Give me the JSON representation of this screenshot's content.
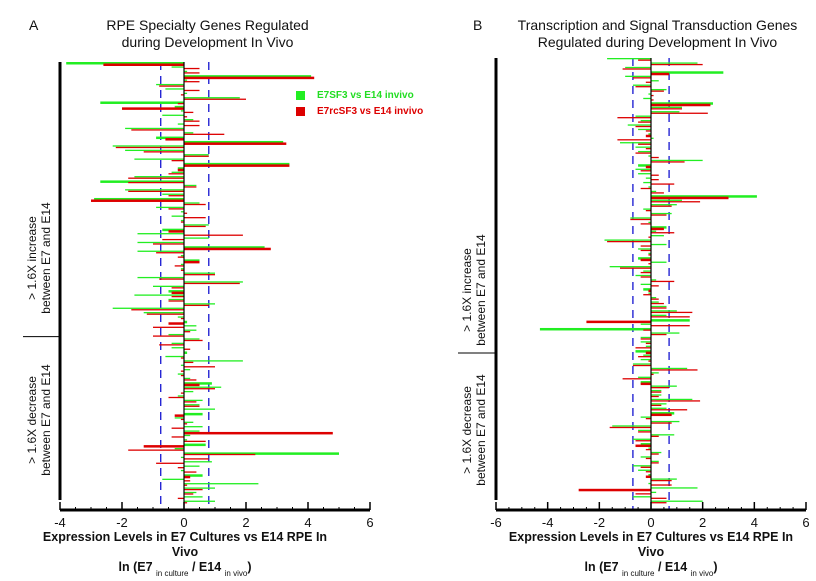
{
  "panels": [
    {
      "letter": "A",
      "title_line1": "RPE Specialty Genes Regulated",
      "title_line2": "during Development In Vivo",
      "xlabel_line1": "Expression Levels in E7 Cultures vs E14 RPE In Vivo",
      "xlabel_line2_prefix": "ln (E7",
      "xlabel_sub1": "in culture",
      "xlabel_mid": "/ E14",
      "xlabel_sub2": "in vivo",
      "xlabel_suffix": ")",
      "group_increase_line1": "> 1.6X increase",
      "group_increase_line2": "between E7 and E14",
      "group_decrease_line1": "> 1.6X decrease",
      "group_decrease_line2": "between E7 and E14"
    },
    {
      "letter": "B",
      "title_line1": "Transcription and Signal Transduction Genes",
      "title_line2": "Regulated during Development In Vivo",
      "xlabel_line1": "Expression Levels in E7 Cultures vs E14 RPE In Vivo",
      "xlabel_line2_prefix": "ln (E7",
      "xlabel_sub1": "in culture",
      "xlabel_mid": "/ E14",
      "xlabel_sub2": "in vivo",
      "xlabel_suffix": ")",
      "group_increase_line1": "> 1.6X increase",
      "group_increase_line2": "between E7 and E14",
      "group_decrease_line1": "> 1.6X decrease",
      "group_decrease_line2": "between E7 and E14"
    }
  ],
  "legend": {
    "items": [
      {
        "label": "E7SF3 vs E14 invivo",
        "color": "#22ee22"
      },
      {
        "label": "E7rcSF3 vs E14 invivo",
        "color": "#dd0000"
      }
    ]
  },
  "colors": {
    "green": "#22ee22",
    "red": "#dd0000",
    "threshold": "#0000cc",
    "axis": "#000000"
  },
  "chart_data": [
    {
      "type": "bar",
      "orientation": "horizontal",
      "title": "RPE Specialty Genes Regulated during Development In Vivo",
      "xlabel": "Expression Levels in E7 Cultures vs E14 RPE In Vivo ln (E7 in culture / E14 in vivo)",
      "xlim": [
        -4,
        6
      ],
      "xticks": [
        -4,
        -2,
        0,
        2,
        4,
        6
      ],
      "threshold_lines": [
        -0.75,
        0.8
      ],
      "group_split_fraction": 0.62,
      "legend_position": "top-right",
      "series": [
        {
          "name": "E7SF3 vs E14 invivo",
          "values": [
            -3.8,
            -0.4,
            0.1,
            4.1,
            0.1,
            -0.9,
            -0.6,
            0.1,
            1.8,
            -2.7,
            -0.3,
            -0.1,
            -0.7,
            0.3,
            -0.2,
            -1.9,
            0.3,
            -0.9,
            3.2,
            -2.3,
            -1.9,
            0.8,
            -1.6,
            3.4,
            -0.2,
            -0.4,
            -1.6,
            -2.7,
            0.4,
            -1.9,
            -0.7,
            -2.9,
            0.5,
            -0.9,
            -0.1,
            -0.4,
            -0.1,
            0.8,
            -0.7,
            -1.5,
            0.8,
            -1.5,
            2.6,
            -1.5,
            -0.1,
            0.5,
            -0.1,
            -0.1,
            1.0,
            -1.5,
            1.9,
            -1.0,
            -0.5,
            -1.6,
            -0.5,
            1.0,
            -2.3,
            -1.3,
            -0.2,
            0.1,
            0.4,
            0.4,
            -0.5,
            0.5,
            -0.4,
            -0.4,
            0.1,
            -0.6,
            1.9,
            -0.1,
            0.2,
            -0.2,
            0.2,
            0.9,
            1.2,
            0.3,
            -0.2,
            0.6,
            0.5,
            1.0,
            0.6,
            -0.3,
            0.3,
            0.6,
            0.5,
            0.2,
            0.1,
            0.7,
            -0.3,
            5.0,
            -0.1,
            0.9,
            0.5,
            -0.1,
            0.6,
            -0.7,
            2.4,
            1.0,
            0.4,
            0.6,
            1.0
          ],
          "color": "#22ee22"
        },
        {
          "name": "E7rcSF3 vs E14 invivo",
          "values": [
            -2.6,
            0.5,
            0.5,
            4.2,
            0.5,
            -0.8,
            0.5,
            -0.1,
            2.0,
            -0.2,
            -2.0,
            0.3,
            0.1,
            0.5,
            0.5,
            -1.7,
            1.3,
            -0.6,
            3.3,
            -2.2,
            -1.3,
            0.8,
            -0.4,
            3.4,
            -0.2,
            -0.5,
            -1.8,
            -1.8,
            0.4,
            -1.8,
            -0.5,
            -3.0,
            0.7,
            -0.5,
            0.1,
            0.7,
            -0.1,
            0.7,
            -0.5,
            1.9,
            -0.7,
            -1.0,
            2.8,
            -0.9,
            -0.2,
            0.5,
            -0.3,
            -0.1,
            1.0,
            -0.8,
            1.8,
            -0.4,
            -0.4,
            -0.4,
            -0.5,
            0.8,
            -1.7,
            -1.2,
            -0.1,
            -0.5,
            -1.0,
            0.2,
            -1.0,
            0.6,
            -0.8,
            0.2,
            0.0,
            -0.1,
            0.3,
            1.0,
            -0.1,
            -0.1,
            0.4,
            0.5,
            1.0,
            -0.1,
            -0.5,
            0.4,
            0.5,
            0.0,
            -0.3,
            -0.1,
            0.1,
            -0.4,
            4.8,
            -0.4,
            0.7,
            -1.3,
            -1.8,
            2.3,
            0.8,
            -0.9,
            -0.2,
            0.4,
            0.2,
            0.2,
            0.1,
            0.6,
            0.3,
            -0.2,
            0.1
          ],
          "color": "#dd0000"
        }
      ]
    },
    {
      "type": "bar",
      "orientation": "horizontal",
      "title": "Transcription and Signal Transduction Genes Regulated during Development In Vivo",
      "xlabel": "Expression Levels in E7 Cultures vs E14 RPE In Vivo ln (E7 in culture / E14 in vivo)",
      "xlim": [
        -6,
        6
      ],
      "xticks": [
        -6,
        -4,
        -2,
        0,
        2,
        4,
        6
      ],
      "threshold_lines": [
        -0.7,
        0.7
      ],
      "group_split_fraction": 0.66,
      "legend_position": "none",
      "series": [
        {
          "name": "E7SF3 vs E14 invivo",
          "values": [
            -1.7,
            1.8,
            -1.0,
            2.8,
            -1.0,
            0.3,
            -0.7,
            0.6,
            -0.1,
            -0.3,
            2.4,
            1.2,
            1.1,
            -0.6,
            -0.4,
            -0.9,
            -0.5,
            -0.1,
            0.1,
            -1.2,
            -0.6,
            -0.5,
            -0.1,
            2.0,
            -0.5,
            -0.6,
            -0.5,
            -0.2,
            -0.3,
            -0.1,
            0.2,
            4.1,
            1.2,
            1.0,
            -0.3,
            0.8,
            -0.8,
            -0.1,
            0.6,
            0.2,
            0.5,
            -1.8,
            0.6,
            -0.5,
            -0.1,
            -0.5,
            0.6,
            -1.6,
            -0.3,
            -0.6,
            0.2,
            -0.4,
            -0.3,
            -0.1,
            0.2,
            0.3,
            0.6,
            1.0,
            0.6,
            1.5,
            -0.4,
            -4.3,
            1.1,
            -0.4,
            -0.4,
            -0.2,
            -0.6,
            -0.3,
            -0.4,
            -0.7,
            1.4,
            0.3,
            -0.5,
            -0.4,
            1.0,
            0.4,
            0.4,
            1.6,
            0.6,
            0.6,
            0.9,
            -0.4,
            1.1,
            -1.5,
            -0.5,
            0.9,
            -0.7,
            -0.4,
            -0.1,
            0.4,
            -0.4,
            0.3,
            -0.7,
            -0.5,
            -0.1,
            1.0,
            -0.1,
            1.8,
            0.2,
            -0.7,
            2.0
          ],
          "color": "#22ee22"
        },
        {
          "name": "E7rcSF3 vs E14 invivo",
          "values": [
            -0.5,
            2.0,
            -1.1,
            0.7,
            -0.7,
            -0.2,
            -0.6,
            0.5,
            0.1,
            0.1,
            2.3,
            1.2,
            2.2,
            -1.3,
            -0.5,
            -0.6,
            -0.2,
            -0.2,
            -1.3,
            -0.5,
            -0.2,
            -0.6,
            0.3,
            1.3,
            -0.2,
            -0.4,
            0.3,
            0.3,
            0.9,
            -0.4,
            0.5,
            3.0,
            1.9,
            0.8,
            -0.2,
            0.6,
            -0.8,
            -0.4,
            0.5,
            0.9,
            -0.1,
            -1.7,
            -0.4,
            -0.4,
            -0.1,
            -0.4,
            -0.1,
            -1.2,
            -0.4,
            -0.4,
            0.9,
            0.3,
            -0.1,
            -0.3,
            0.3,
            0.5,
            0.6,
            1.6,
            1.5,
            -2.5,
            1.5,
            -0.3,
            0.6,
            -0.4,
            -0.2,
            -0.6,
            -0.2,
            -0.5,
            -0.1,
            -0.7,
            1.8,
            0.1,
            -1.1,
            -0.4,
            0.7,
            0.4,
            0.3,
            1.9,
            0.4,
            1.4,
            0.8,
            -0.2,
            0.8,
            -1.6,
            -0.5,
            0.3,
            -0.6,
            -0.6,
            -0.2,
            0.3,
            -0.2,
            0.3,
            -0.4,
            -0.2,
            -0.2,
            0.8,
            0.8,
            -2.8,
            -0.6,
            0.6,
            0.6
          ],
          "color": "#dd0000"
        }
      ]
    }
  ]
}
